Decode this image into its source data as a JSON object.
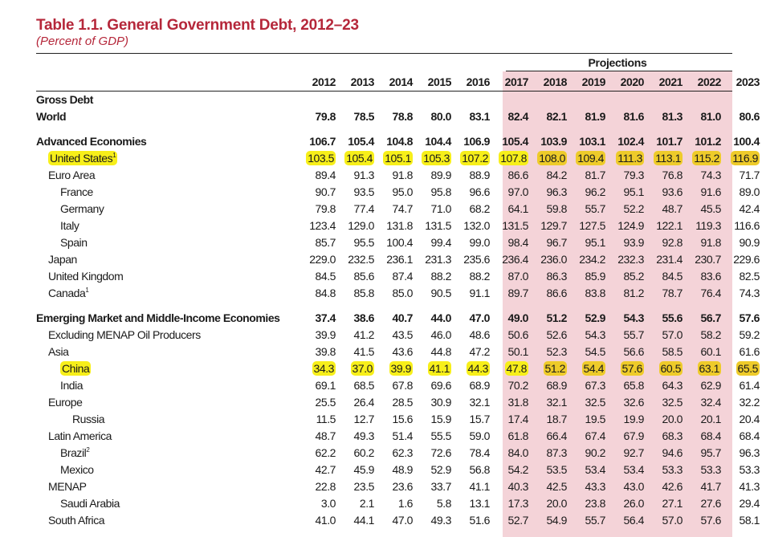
{
  "title": "Table 1.1. General Government Debt, 2012–23",
  "subtitle": "(Percent of GDP)",
  "projections_label": "Projections",
  "colors": {
    "title": "#b5273a",
    "projection_bg": "#f4d3d8",
    "highlight": "#f7ef1a"
  },
  "years": [
    "2012",
    "2013",
    "2014",
    "2015",
    "2016",
    "2017",
    "2018",
    "2019",
    "2020",
    "2021",
    "2022",
    "2023"
  ],
  "rows": [
    {
      "label": "Gross Debt",
      "indent": 0,
      "bold": true,
      "values": []
    },
    {
      "label": "World",
      "indent": 0,
      "bold": true,
      "values": [
        "79.8",
        "78.5",
        "78.8",
        "80.0",
        "83.1",
        "82.4",
        "82.1",
        "81.9",
        "81.6",
        "81.3",
        "81.0",
        "80.6"
      ]
    },
    {
      "spacer": true
    },
    {
      "label": "Advanced Economies",
      "indent": 0,
      "bold": true,
      "values": [
        "106.7",
        "105.4",
        "104.8",
        "104.4",
        "106.9",
        "105.4",
        "103.9",
        "103.1",
        "102.4",
        "101.7",
        "101.2",
        "100.4"
      ]
    },
    {
      "label": "United States",
      "sup": "1",
      "indent": 1,
      "highlight": true,
      "values": [
        "103.5",
        "105.4",
        "105.1",
        "105.3",
        "107.2",
        "107.8",
        "108.0",
        "109.4",
        "111.3",
        "113.1",
        "115.2",
        "116.9"
      ]
    },
    {
      "label": "Euro Area",
      "indent": 1,
      "values": [
        "89.4",
        "91.3",
        "91.8",
        "89.9",
        "88.9",
        "86.6",
        "84.2",
        "81.7",
        "79.3",
        "76.8",
        "74.3",
        "71.7"
      ]
    },
    {
      "label": "France",
      "indent": 2,
      "values": [
        "90.7",
        "93.5",
        "95.0",
        "95.8",
        "96.6",
        "97.0",
        "96.3",
        "96.2",
        "95.1",
        "93.6",
        "91.6",
        "89.0"
      ]
    },
    {
      "label": "Germany",
      "indent": 2,
      "values": [
        "79.8",
        "77.4",
        "74.7",
        "71.0",
        "68.2",
        "64.1",
        "59.8",
        "55.7",
        "52.2",
        "48.7",
        "45.5",
        "42.4"
      ]
    },
    {
      "label": "Italy",
      "indent": 2,
      "values": [
        "123.4",
        "129.0",
        "131.8",
        "131.5",
        "132.0",
        "131.5",
        "129.7",
        "127.5",
        "124.9",
        "122.1",
        "119.3",
        "116.6"
      ]
    },
    {
      "label": "Spain",
      "indent": 2,
      "values": [
        "85.7",
        "95.5",
        "100.4",
        "99.4",
        "99.0",
        "98.4",
        "96.7",
        "95.1",
        "93.9",
        "92.8",
        "91.8",
        "90.9"
      ]
    },
    {
      "label": "Japan",
      "indent": 1,
      "values": [
        "229.0",
        "232.5",
        "236.1",
        "231.3",
        "235.6",
        "236.4",
        "236.0",
        "234.2",
        "232.3",
        "231.4",
        "230.7",
        "229.6"
      ]
    },
    {
      "label": "United Kingdom",
      "indent": 1,
      "values": [
        "84.5",
        "85.6",
        "87.4",
        "88.2",
        "88.2",
        "87.0",
        "86.3",
        "85.9",
        "85.2",
        "84.5",
        "83.6",
        "82.5"
      ]
    },
    {
      "label": "Canada",
      "sup": "1",
      "indent": 1,
      "values": [
        "84.8",
        "85.8",
        "85.0",
        "90.5",
        "91.1",
        "89.7",
        "86.6",
        "83.8",
        "81.2",
        "78.7",
        "76.4",
        "74.3"
      ]
    },
    {
      "spacer": true
    },
    {
      "label": "Emerging Market and Middle-Income Economies",
      "indent": 0,
      "bold": true,
      "values": [
        "37.4",
        "38.6",
        "40.7",
        "44.0",
        "47.0",
        "49.0",
        "51.2",
        "52.9",
        "54.3",
        "55.6",
        "56.7",
        "57.6"
      ]
    },
    {
      "label": "Excluding MENAP Oil Producers",
      "indent": 1,
      "values": [
        "39.9",
        "41.2",
        "43.5",
        "46.0",
        "48.6",
        "50.6",
        "52.6",
        "54.3",
        "55.7",
        "57.0",
        "58.2",
        "59.2"
      ]
    },
    {
      "label": "Asia",
      "indent": 1,
      "values": [
        "39.8",
        "41.5",
        "43.6",
        "44.8",
        "47.2",
        "50.1",
        "52.3",
        "54.5",
        "56.6",
        "58.5",
        "60.1",
        "61.6"
      ]
    },
    {
      "label": "China",
      "indent": 2,
      "highlight": true,
      "values": [
        "34.3",
        "37.0",
        "39.9",
        "41.1",
        "44.3",
        "47.8",
        "51.2",
        "54.4",
        "57.6",
        "60.5",
        "63.1",
        "65.5"
      ]
    },
    {
      "label": "India",
      "indent": 2,
      "values": [
        "69.1",
        "68.5",
        "67.8",
        "69.6",
        "68.9",
        "70.2",
        "68.9",
        "67.3",
        "65.8",
        "64.3",
        "62.9",
        "61.4"
      ]
    },
    {
      "label": "Europe",
      "indent": 1,
      "values": [
        "25.5",
        "26.4",
        "28.5",
        "30.9",
        "32.1",
        "31.8",
        "32.1",
        "32.5",
        "32.6",
        "32.5",
        "32.4",
        "32.2"
      ]
    },
    {
      "label": "Russia",
      "indent": 3,
      "values": [
        "11.5",
        "12.7",
        "15.6",
        "15.9",
        "15.7",
        "17.4",
        "18.7",
        "19.5",
        "19.9",
        "20.0",
        "20.1",
        "20.4"
      ]
    },
    {
      "label": "Latin America",
      "indent": 1,
      "values": [
        "48.7",
        "49.3",
        "51.4",
        "55.5",
        "59.0",
        "61.8",
        "66.4",
        "67.4",
        "67.9",
        "68.3",
        "68.4",
        "68.4"
      ]
    },
    {
      "label": "Brazil",
      "sup": "2",
      "indent": 2,
      "values": [
        "62.2",
        "60.2",
        "62.3",
        "72.6",
        "78.4",
        "84.0",
        "87.3",
        "90.2",
        "92.7",
        "94.6",
        "95.7",
        "96.3"
      ]
    },
    {
      "label": "Mexico",
      "indent": 2,
      "values": [
        "42.7",
        "45.9",
        "48.9",
        "52.9",
        "56.8",
        "54.2",
        "53.5",
        "53.4",
        "53.4",
        "53.3",
        "53.3",
        "53.3"
      ]
    },
    {
      "label": "MENAP",
      "indent": 1,
      "values": [
        "22.8",
        "23.5",
        "23.6",
        "33.7",
        "41.1",
        "40.3",
        "42.5",
        "43.3",
        "43.0",
        "42.6",
        "41.7",
        "41.3"
      ]
    },
    {
      "label": "Saudi Arabia",
      "indent": 2,
      "values": [
        "3.0",
        "2.1",
        "1.6",
        "5.8",
        "13.1",
        "17.3",
        "20.0",
        "23.8",
        "26.0",
        "27.1",
        "27.6",
        "29.4"
      ]
    },
    {
      "label": "South Africa",
      "indent": 1,
      "values": [
        "41.0",
        "44.1",
        "47.0",
        "49.3",
        "51.6",
        "52.7",
        "54.9",
        "55.7",
        "56.4",
        "57.0",
        "57.6",
        "58.1"
      ]
    }
  ]
}
